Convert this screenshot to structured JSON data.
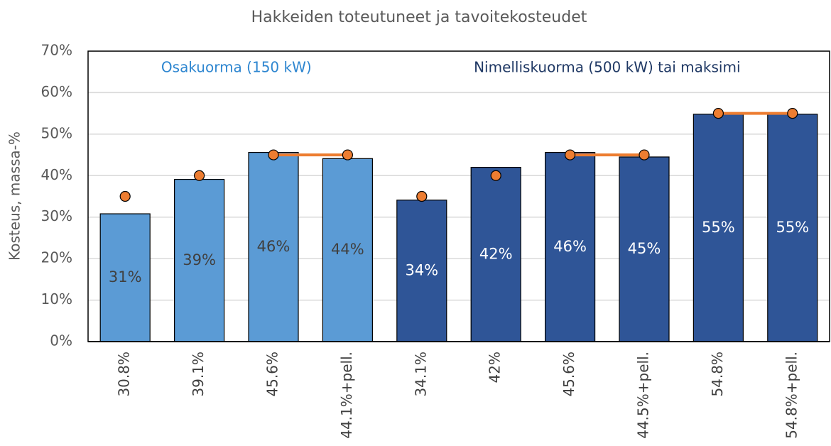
{
  "chart_data": {
    "type": "bar",
    "title": "Hakkeiden toteutuneet ja tavoitekosteudet",
    "ylabel": "Kosteus, massa-%",
    "categories": [
      "30.8%",
      "39.1%",
      "45.6%",
      "44.1%+pell.",
      "34.1%",
      "42%",
      "45.6%",
      "44.5%+pell.",
      "54.8%",
      "54.8%+pell."
    ],
    "series": [
      {
        "name": "Osakuorma (150 kW)",
        "color": "#5b9bd5",
        "label_color": "#404040",
        "values": [
          30.8,
          39.1,
          45.6,
          44.1,
          null,
          null,
          null,
          null,
          null,
          null
        ],
        "value_labels": [
          "31%",
          "39%",
          "46%",
          "44%",
          null,
          null,
          null,
          null,
          null,
          null
        ]
      },
      {
        "name": "Nimelliskuorma (500 kW) tai maksimi",
        "color": "#2f5597",
        "label_color": "#ffffff",
        "values": [
          null,
          null,
          null,
          null,
          34.1,
          42,
          45.6,
          44.5,
          54.8,
          54.8
        ],
        "value_labels": [
          null,
          null,
          null,
          null,
          "34%",
          "42%",
          "46%",
          "45%",
          "55%",
          "55%"
        ]
      }
    ],
    "targets": {
      "color": "#ed7d31",
      "values": [
        35,
        40,
        45,
        45,
        35,
        40,
        45,
        45,
        55,
        55
      ]
    },
    "ylim": [
      0,
      70
    ],
    "yticks": [
      {
        "value": 0,
        "label": "0%"
      },
      {
        "value": 10,
        "label": "10%"
      },
      {
        "value": 20,
        "label": "20%"
      },
      {
        "value": 30,
        "label": "30%"
      },
      {
        "value": 40,
        "label": "40%"
      },
      {
        "value": 50,
        "label": "50%"
      },
      {
        "value": 60,
        "label": "60%"
      },
      {
        "value": 70,
        "label": "70%"
      }
    ],
    "grid": true
  }
}
